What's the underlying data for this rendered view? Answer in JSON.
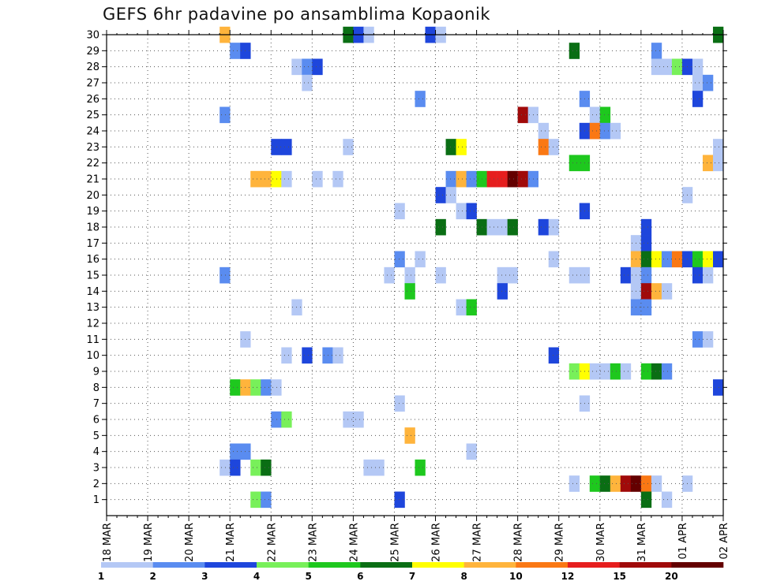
{
  "chart_data": {
    "type": "heatmap",
    "title": "GEFS 6hr padavine po ansamblima Kopaonik",
    "x_ticks": [
      "18 MAR",
      "19 MAR",
      "20 MAR",
      "21 MAR",
      "22 MAR",
      "23 MAR",
      "24 MAR",
      "25 MAR",
      "26 MAR",
      "27 MAR",
      "28 MAR",
      "29 MAR",
      "30 MAR",
      "31 MAR",
      "01 APR",
      "02 APR"
    ],
    "y_ticks": [
      "1",
      "2",
      "3",
      "4",
      "5",
      "6",
      "7",
      "8",
      "9",
      "10",
      "11",
      "12",
      "13",
      "14",
      "15",
      "16",
      "17",
      "18",
      "19",
      "20",
      "21",
      "22",
      "23",
      "24",
      "25",
      "26",
      "27",
      "28",
      "29",
      "30"
    ],
    "x_range_steps": [
      0,
      60
    ],
    "y_range_members": [
      0,
      30
    ],
    "colorbar": {
      "labels": [
        "1",
        "2",
        "3",
        "4",
        "5",
        "6",
        "7",
        "8",
        "10",
        "12",
        "15",
        "20"
      ],
      "colors": [
        "#b4c8f5",
        "#5a8cf0",
        "#1e46dc",
        "#78f05a",
        "#1ec81e",
        "#0a6e14",
        "#ffff00",
        "#ffb43c",
        "#fa7814",
        "#e61e1e",
        "#a00a0a",
        "#640000"
      ]
    },
    "cells": [
      [
        11.5,
        30,
        8
      ],
      [
        23.5,
        30,
        6
      ],
      [
        24.5,
        30,
        3
      ],
      [
        25.5,
        30,
        1
      ],
      [
        31.5,
        30,
        3
      ],
      [
        32.5,
        30,
        1
      ],
      [
        59.5,
        30,
        6
      ],
      [
        12.5,
        29,
        2
      ],
      [
        13.5,
        29,
        3
      ],
      [
        45.5,
        29,
        6
      ],
      [
        53.5,
        29,
        2
      ],
      [
        18.5,
        28,
        1
      ],
      [
        19.5,
        28,
        2
      ],
      [
        20.5,
        28,
        3
      ],
      [
        53.5,
        28,
        1
      ],
      [
        54.5,
        28,
        1
      ],
      [
        55.5,
        28,
        4
      ],
      [
        56.5,
        28,
        3
      ],
      [
        57.5,
        28,
        1
      ],
      [
        19.5,
        27,
        1
      ],
      [
        57.5,
        27,
        1
      ],
      [
        58.5,
        27,
        2
      ],
      [
        30.5,
        26,
        2
      ],
      [
        46.5,
        26,
        2
      ],
      [
        57.5,
        26,
        3
      ],
      [
        11.5,
        25,
        2
      ],
      [
        40.5,
        25,
        11
      ],
      [
        41.5,
        25,
        1
      ],
      [
        47.5,
        25,
        1
      ],
      [
        48.5,
        25,
        5
      ],
      [
        42.5,
        24,
        1
      ],
      [
        46.5,
        24,
        3
      ],
      [
        47.5,
        24,
        9
      ],
      [
        48.5,
        24,
        2
      ],
      [
        49.5,
        24,
        1
      ],
      [
        16.5,
        23,
        3
      ],
      [
        17.5,
        23,
        3
      ],
      [
        23.5,
        23,
        1
      ],
      [
        33.5,
        23,
        6
      ],
      [
        34.5,
        23,
        7
      ],
      [
        42.5,
        23,
        9
      ],
      [
        43.5,
        23,
        1
      ],
      [
        59.5,
        23,
        1
      ],
      [
        45.5,
        22,
        5
      ],
      [
        46.5,
        22,
        5
      ],
      [
        58.5,
        22,
        8
      ],
      [
        59.5,
        22,
        1
      ],
      [
        14.5,
        21,
        8
      ],
      [
        15.5,
        21,
        8
      ],
      [
        16.5,
        21,
        7
      ],
      [
        17.5,
        21,
        1
      ],
      [
        20.5,
        21,
        1
      ],
      [
        22.5,
        21,
        1
      ],
      [
        33.5,
        21,
        2
      ],
      [
        34.5,
        21,
        8
      ],
      [
        35.5,
        21,
        2
      ],
      [
        36.5,
        21,
        5
      ],
      [
        37.5,
        21,
        10
      ],
      [
        38.5,
        21,
        10
      ],
      [
        39.5,
        21,
        12
      ],
      [
        40.5,
        21,
        11
      ],
      [
        41.5,
        21,
        2
      ],
      [
        32.5,
        20,
        3
      ],
      [
        33.5,
        20,
        1
      ],
      [
        56.5,
        20,
        1
      ],
      [
        28.5,
        19,
        1
      ],
      [
        34.5,
        19,
        1
      ],
      [
        35.5,
        19,
        3
      ],
      [
        46.5,
        19,
        3
      ],
      [
        32.5,
        18,
        6
      ],
      [
        36.5,
        18,
        6
      ],
      [
        37.5,
        18,
        1
      ],
      [
        38.5,
        18,
        1
      ],
      [
        39.5,
        18,
        6
      ],
      [
        42.5,
        18,
        3
      ],
      [
        43.5,
        18,
        1
      ],
      [
        52.5,
        18,
        3
      ],
      [
        51.5,
        17,
        1
      ],
      [
        52.5,
        17,
        3
      ],
      [
        28.5,
        16,
        2
      ],
      [
        30.5,
        16,
        1
      ],
      [
        43.5,
        16,
        1
      ],
      [
        51.5,
        16,
        8
      ],
      [
        52.5,
        16,
        6
      ],
      [
        53.5,
        16,
        7
      ],
      [
        54.5,
        16,
        2
      ],
      [
        55.5,
        16,
        9
      ],
      [
        56.5,
        16,
        3
      ],
      [
        57.5,
        16,
        5
      ],
      [
        58.5,
        16,
        7
      ],
      [
        59.5,
        16,
        3
      ],
      [
        11.5,
        15,
        2
      ],
      [
        27.5,
        15,
        1
      ],
      [
        29.5,
        15,
        1
      ],
      [
        32.5,
        15,
        1
      ],
      [
        38.5,
        15,
        1
      ],
      [
        39.5,
        15,
        1
      ],
      [
        45.5,
        15,
        1
      ],
      [
        46.5,
        15,
        1
      ],
      [
        50.5,
        15,
        3
      ],
      [
        51.5,
        15,
        1
      ],
      [
        52.5,
        15,
        2
      ],
      [
        57.5,
        15,
        3
      ],
      [
        58.5,
        15,
        1
      ],
      [
        29.5,
        14,
        5
      ],
      [
        38.5,
        14,
        3
      ],
      [
        51.5,
        14,
        1
      ],
      [
        52.5,
        14,
        11
      ],
      [
        53.5,
        14,
        8
      ],
      [
        54.5,
        14,
        1
      ],
      [
        18.5,
        13,
        1
      ],
      [
        34.5,
        13,
        1
      ],
      [
        35.5,
        13,
        5
      ],
      [
        51.5,
        13,
        2
      ],
      [
        52.5,
        13,
        2
      ],
      [
        13.5,
        11,
        1
      ],
      [
        57.5,
        11,
        2
      ],
      [
        58.5,
        11,
        1
      ],
      [
        17.5,
        10,
        1
      ],
      [
        19.5,
        10,
        3
      ],
      [
        21.5,
        10,
        2
      ],
      [
        22.5,
        10,
        1
      ],
      [
        43.5,
        10,
        3
      ],
      [
        45.5,
        9,
        4
      ],
      [
        46.5,
        9,
        7
      ],
      [
        47.5,
        9,
        1
      ],
      [
        48.5,
        9,
        1
      ],
      [
        49.5,
        9,
        5
      ],
      [
        50.5,
        9,
        1
      ],
      [
        52.5,
        9,
        5
      ],
      [
        53.5,
        9,
        6
      ],
      [
        54.5,
        9,
        2
      ],
      [
        12.5,
        8,
        5
      ],
      [
        13.5,
        8,
        8
      ],
      [
        14.5,
        8,
        4
      ],
      [
        15.5,
        8,
        2
      ],
      [
        16.5,
        8,
        1
      ],
      [
        59.5,
        8,
        3
      ],
      [
        28.5,
        7,
        1
      ],
      [
        46.5,
        7,
        1
      ],
      [
        16.5,
        6,
        2
      ],
      [
        17.5,
        6,
        4
      ],
      [
        23.5,
        6,
        1
      ],
      [
        24.5,
        6,
        1
      ],
      [
        29.5,
        5,
        8
      ],
      [
        12.5,
        4,
        2
      ],
      [
        13.5,
        4,
        2
      ],
      [
        35.5,
        4,
        1
      ],
      [
        11.5,
        3,
        1
      ],
      [
        12.5,
        3,
        3
      ],
      [
        14.5,
        3,
        4
      ],
      [
        15.5,
        3,
        6
      ],
      [
        25.5,
        3,
        1
      ],
      [
        26.5,
        3,
        1
      ],
      [
        30.5,
        3,
        5
      ],
      [
        45.5,
        2,
        1
      ],
      [
        47.5,
        2,
        5
      ],
      [
        48.5,
        2,
        6
      ],
      [
        49.5,
        2,
        8
      ],
      [
        50.5,
        2,
        11
      ],
      [
        51.5,
        2,
        12
      ],
      [
        52.5,
        2,
        9
      ],
      [
        53.5,
        2,
        1
      ],
      [
        56.5,
        2,
        1
      ],
      [
        14.5,
        1,
        4
      ],
      [
        15.5,
        1,
        2
      ],
      [
        28.5,
        1,
        3
      ],
      [
        52.5,
        1,
        6
      ],
      [
        54.5,
        1,
        1
      ]
    ]
  }
}
